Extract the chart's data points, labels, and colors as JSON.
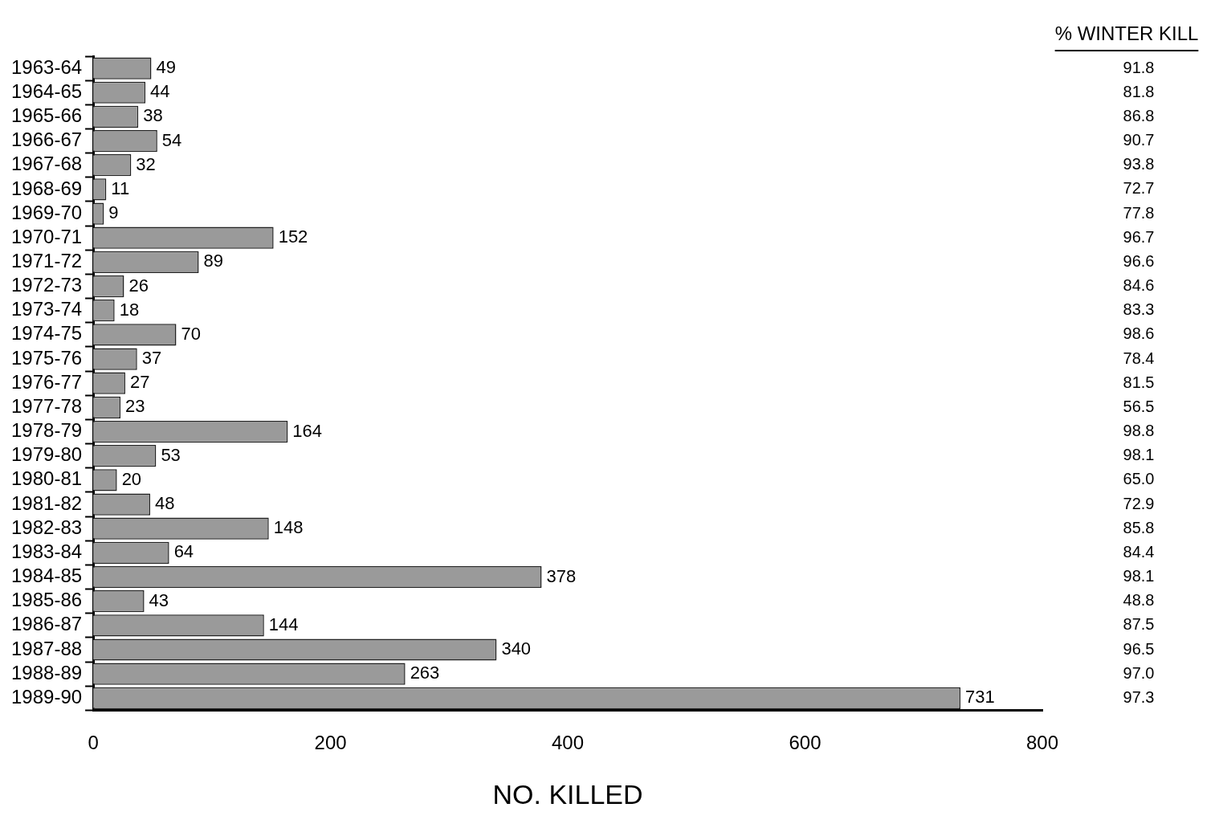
{
  "chart_data": {
    "type": "bar",
    "orientation": "horizontal",
    "xlabel": "NO. KILLED",
    "categories": [
      "1963-64",
      "1964-65",
      "1965-66",
      "1966-67",
      "1967-68",
      "1968-69",
      "1969-70",
      "1970-71",
      "1971-72",
      "1972-73",
      "1973-74",
      "1974-75",
      "1975-76",
      "1976-77",
      "1977-78",
      "1978-79",
      "1979-80",
      "1980-81",
      "1981-82",
      "1982-83",
      "1983-84",
      "1984-85",
      "1985-86",
      "1986-87",
      "1987-88",
      "1988-89",
      "1989-90"
    ],
    "values": [
      49,
      44,
      38,
      54,
      32,
      11,
      9,
      152,
      89,
      26,
      18,
      70,
      37,
      27,
      23,
      164,
      53,
      20,
      48,
      148,
      64,
      378,
      43,
      144,
      340,
      263,
      731
    ],
    "color": "#9a9a9a",
    "data_labels": true,
    "grid": false,
    "xlim": [
      0,
      800
    ],
    "xticks": [
      0,
      200,
      400,
      600,
      800
    ],
    "annotations": [
      "% WINTER KILL",
      "91.8",
      "81.8",
      "86.8",
      "90.7",
      "93.8",
      "72.7",
      "77.8",
      "96.7",
      "96.6",
      "84.6",
      "83.3",
      "98.6",
      "78.4",
      "81.5",
      "56.5",
      "98.8",
      "98.1",
      "65.0",
      "72.9",
      "85.8",
      "84.4",
      "98.1",
      "48.8",
      "87.5",
      "96.5",
      "97.0",
      "97.3"
    ]
  }
}
